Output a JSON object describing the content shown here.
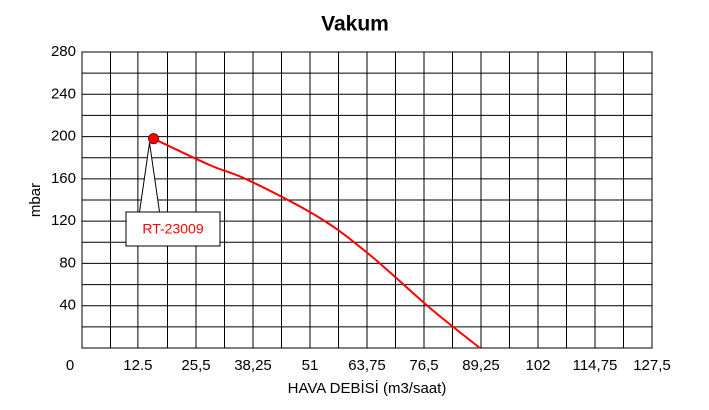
{
  "chart_data": {
    "type": "line",
    "title": "Vakum",
    "x_label": "HAVA DEBİSİ (m3/saat)",
    "y_label": "mbar",
    "xlim": [
      0,
      127.5
    ],
    "ylim": [
      0,
      280
    ],
    "xticks": [
      0,
      12.5,
      {
        "value": 25.5,
        "label": "25,5"
      },
      {
        "value": 38.25,
        "label": "38,25"
      },
      51,
      {
        "value": 63.75,
        "label": "63,75"
      },
      {
        "value": 76.5,
        "label": "76,5"
      },
      {
        "value": 89.25,
        "label": "89,25"
      },
      102,
      {
        "value": 114.75,
        "label": "114,75"
      },
      {
        "value": 127.5,
        "label": "127,5"
      }
    ],
    "yticks": [
      40,
      80,
      120,
      160,
      200,
      240,
      280
    ],
    "grid": true,
    "series": [
      {
        "name": "RT-23009",
        "color": "#ff0000",
        "x": [
          16,
          28.6,
          37.1,
          53.2,
          64.4,
          77.8,
          89
        ],
        "values": [
          198,
          173,
          159,
          123,
          88,
          38,
          0
        ]
      }
    ]
  }
}
